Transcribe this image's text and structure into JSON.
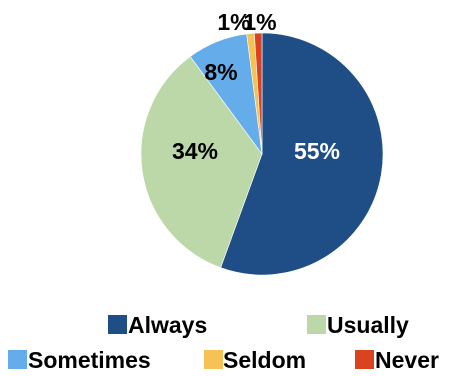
{
  "chart_data": {
    "type": "pie",
    "title": "",
    "labels": [
      "Always",
      "Usually",
      "Sometimes",
      "Seldom",
      "Never"
    ],
    "values": [
      55,
      34,
      8,
      1,
      1
    ],
    "data_labels": [
      "55%",
      "34%",
      "8%",
      "1%",
      "1%"
    ],
    "colors": [
      "#1f4e86",
      "#bcd8a8",
      "#65acea",
      "#f6c256",
      "#d9431f"
    ],
    "label_colors": [
      "#ffffff",
      "#000000",
      "#000000",
      "#000000",
      "#000000"
    ],
    "start": "12 o'clock",
    "direction": "clockwise",
    "legend_position": "bottom"
  }
}
